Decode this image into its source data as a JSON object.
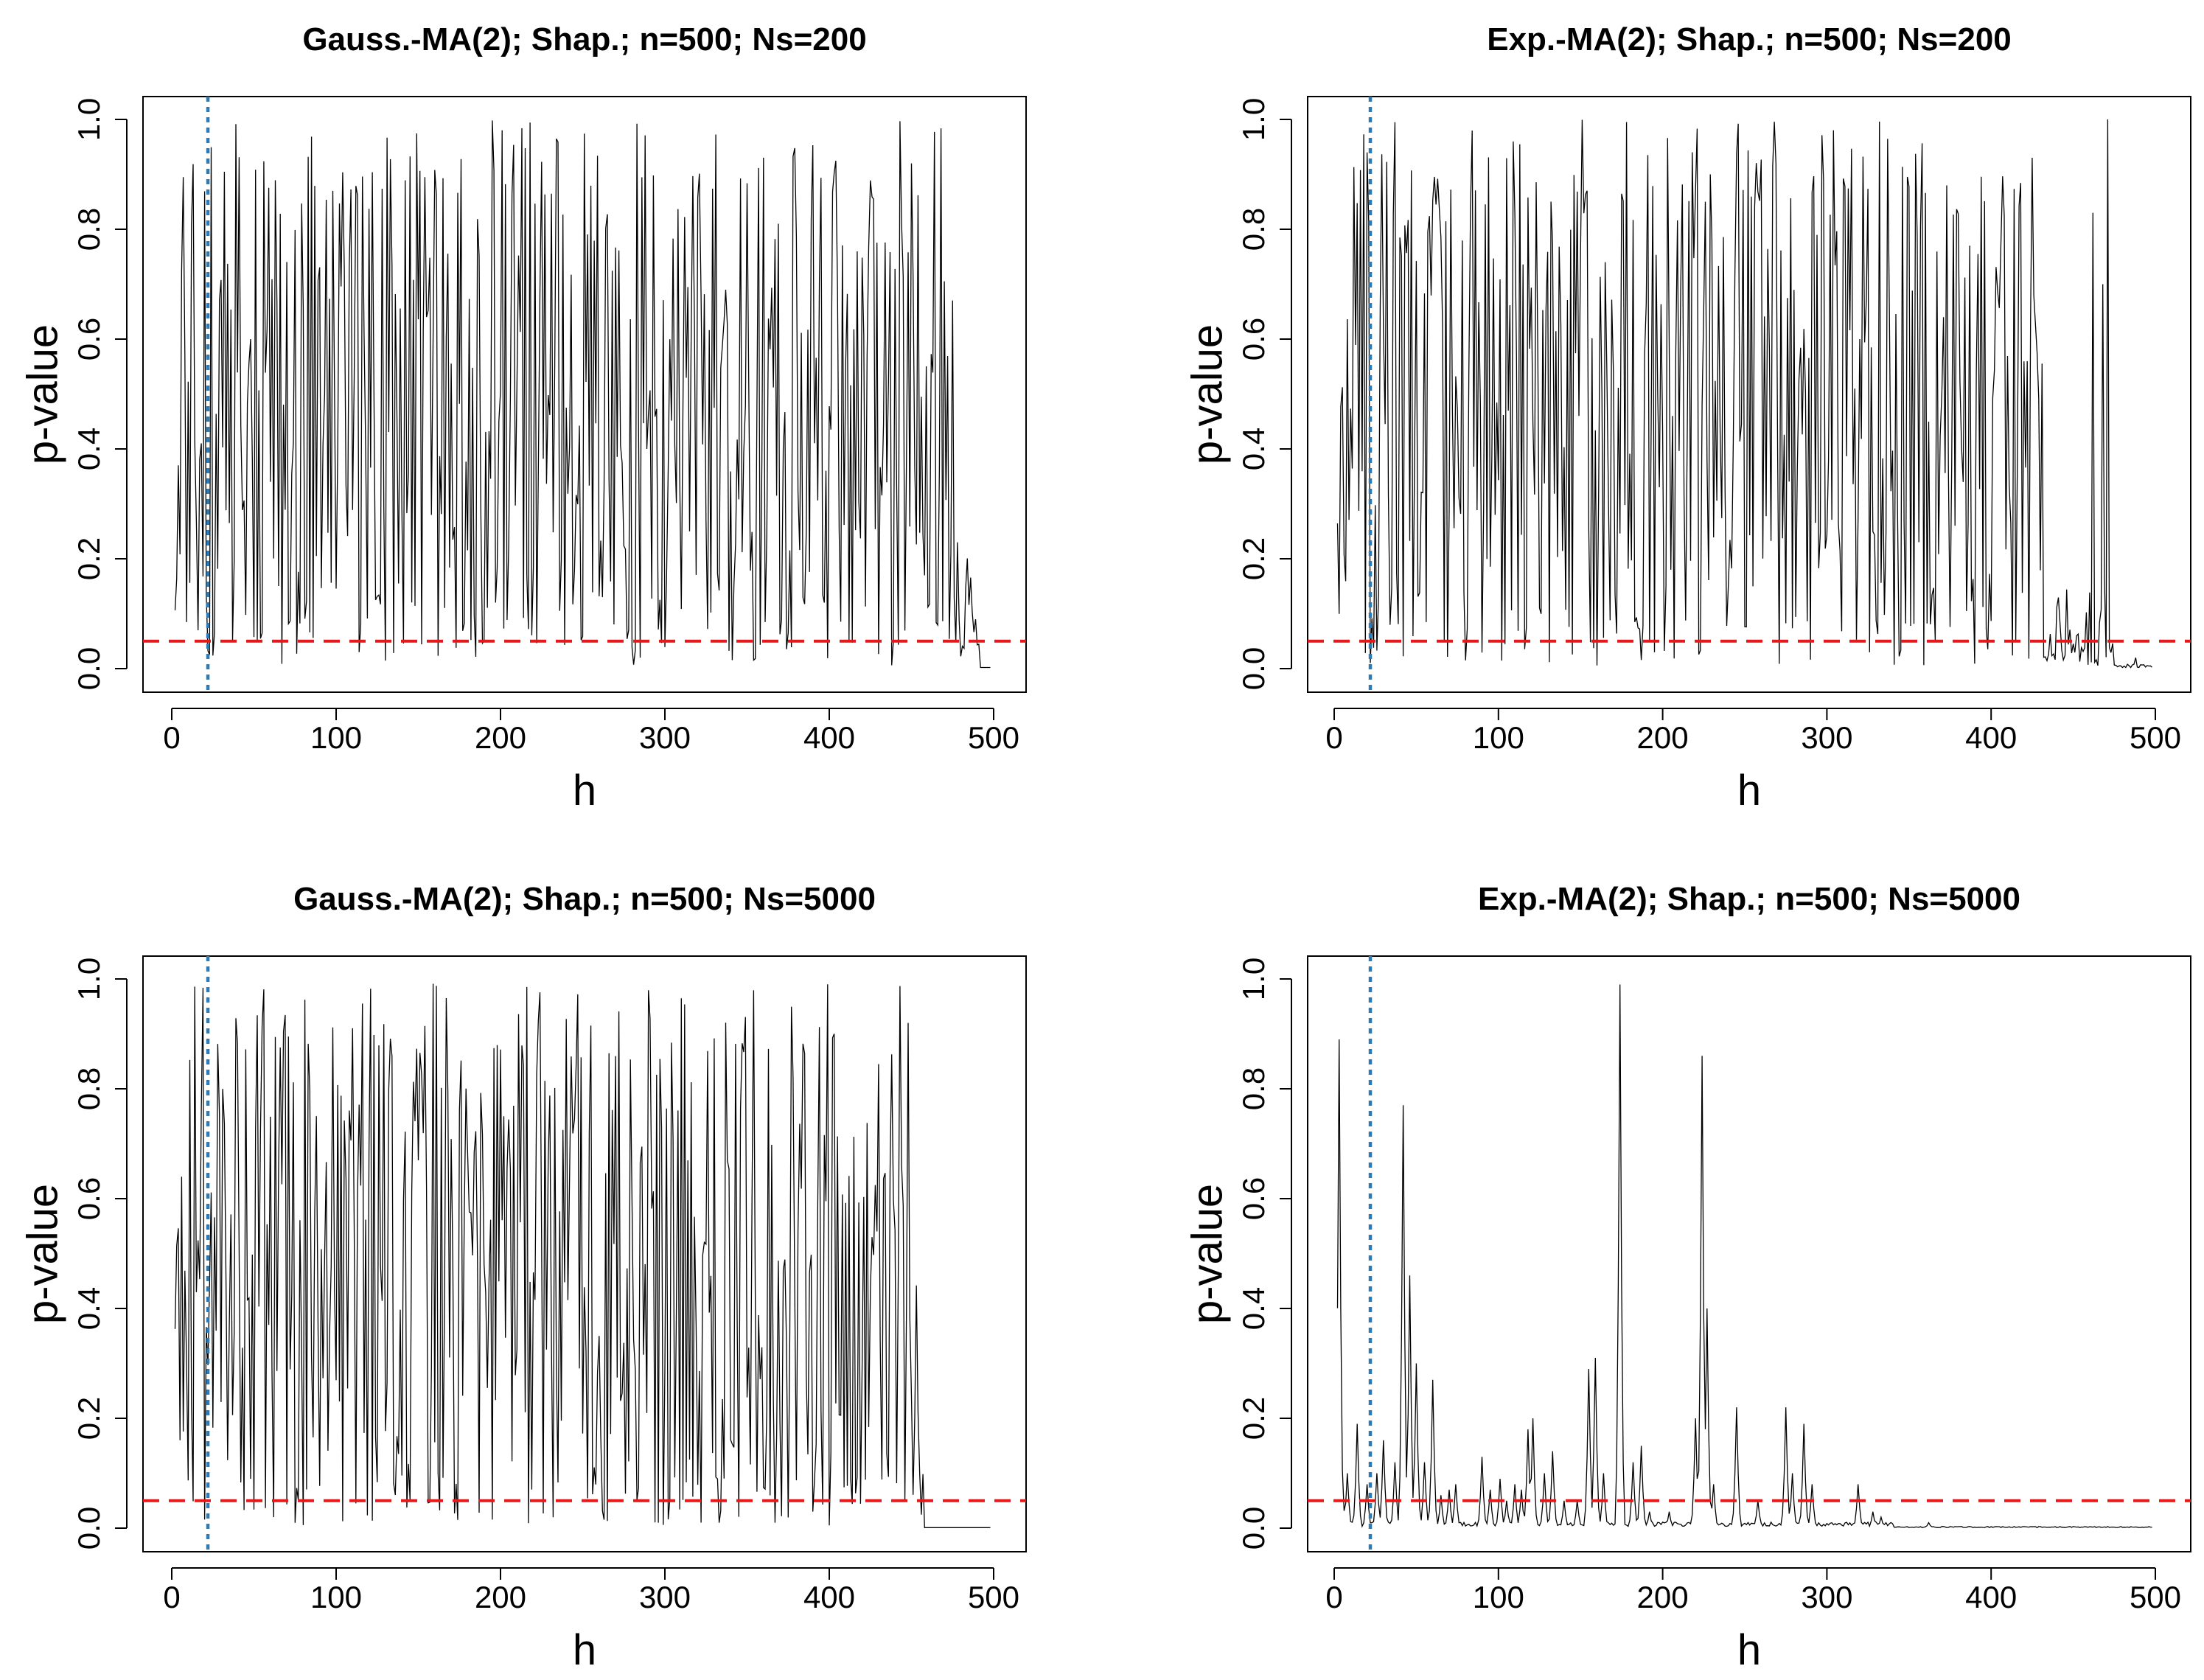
{
  "chart_data": [
    {
      "type": "line",
      "title": "Gauss.-MA(2);  Shap.;  n=500;  Ns=200",
      "xlabel": "h",
      "ylabel": "p-value",
      "xlim": [
        0,
        500
      ],
      "ylim": [
        0,
        1
      ],
      "xticks": [
        "0",
        "100",
        "200",
        "300",
        "400",
        "500"
      ],
      "yticks": [
        "0.0",
        "0.2",
        "0.4",
        "0.6",
        "0.8",
        "1.0"
      ],
      "reference_lines": {
        "hline": 0.05,
        "vline": 22
      },
      "series": [
        {
          "name": "p-value",
          "pattern": "gauss200",
          "x_range": [
            2,
            498
          ]
        }
      ]
    },
    {
      "type": "line",
      "title": "Exp.-MA(2);  Shap.;  n=500;  Ns=200",
      "xlabel": "h",
      "ylabel": "p-value",
      "xlim": [
        0,
        500
      ],
      "ylim": [
        0,
        1
      ],
      "xticks": [
        "0",
        "100",
        "200",
        "300",
        "400",
        "500"
      ],
      "yticks": [
        "0.0",
        "0.2",
        "0.4",
        "0.6",
        "0.8",
        "1.0"
      ],
      "reference_lines": {
        "hline": 0.05,
        "vline": 22
      },
      "series": [
        {
          "name": "p-value",
          "pattern": "exp200",
          "x_range": [
            2,
            498
          ]
        }
      ]
    },
    {
      "type": "line",
      "title": "Gauss.-MA(2);  Shap.;  n=500;  Ns=5000",
      "xlabel": "h",
      "ylabel": "p-value",
      "xlim": [
        0,
        500
      ],
      "ylim": [
        0,
        1
      ],
      "xticks": [
        "0",
        "100",
        "200",
        "300",
        "400",
        "500"
      ],
      "yticks": [
        "0.0",
        "0.2",
        "0.4",
        "0.6",
        "0.8",
        "1.0"
      ],
      "reference_lines": {
        "hline": 0.05,
        "vline": 22
      },
      "series": [
        {
          "name": "p-value",
          "pattern": "gauss5000",
          "x_range": [
            2,
            498
          ]
        }
      ]
    },
    {
      "type": "line",
      "title": "Exp.-MA(2);  Shap.;  n=500;  Ns=5000",
      "xlabel": "h",
      "ylabel": "p-value",
      "xlim": [
        0,
        500
      ],
      "ylim": [
        0,
        1
      ],
      "xticks": [
        "0",
        "100",
        "200",
        "300",
        "400",
        "500"
      ],
      "yticks": [
        "0.0",
        "0.2",
        "0.4",
        "0.6",
        "0.8",
        "1.0"
      ],
      "reference_lines": {
        "hline": 0.05,
        "vline": 22
      },
      "series": [
        {
          "name": "p-value",
          "pattern": "exp5000",
          "x_range": [
            2,
            498
          ],
          "peaks": [
            [
              3,
              0.89
            ],
            [
              5,
              0.07
            ],
            [
              8,
              0.1
            ],
            [
              14,
              0.19
            ],
            [
              20,
              0.08
            ],
            [
              26,
              0.1
            ],
            [
              30,
              0.16
            ],
            [
              37,
              0.12
            ],
            [
              42,
              0.77
            ],
            [
              46,
              0.46
            ],
            [
              50,
              0.3
            ],
            [
              55,
              0.12
            ],
            [
              60,
              0.27
            ],
            [
              65,
              0.06
            ],
            [
              70,
              0.07
            ],
            [
              74,
              0.08
            ],
            [
              90,
              0.13
            ],
            [
              95,
              0.07
            ],
            [
              101,
              0.09
            ],
            [
              105,
              0.05
            ],
            [
              110,
              0.08
            ],
            [
              114,
              0.07
            ],
            [
              118,
              0.18
            ],
            [
              121,
              0.2
            ],
            [
              128,
              0.1
            ],
            [
              133,
              0.14
            ],
            [
              140,
              0.05
            ],
            [
              148,
              0.05
            ],
            [
              155,
              0.29
            ],
            [
              159,
              0.31
            ],
            [
              164,
              0.1
            ],
            [
              174,
              0.99
            ],
            [
              182,
              0.12
            ],
            [
              187,
              0.15
            ],
            [
              192,
              0.03
            ],
            [
              204,
              0.03
            ],
            [
              220,
              0.2
            ],
            [
              224,
              0.86
            ],
            [
              227,
              0.4
            ],
            [
              231,
              0.08
            ],
            [
              245,
              0.22
            ],
            [
              258,
              0.05
            ],
            [
              275,
              0.22
            ],
            [
              279,
              0.1
            ],
            [
              286,
              0.19
            ],
            [
              291,
              0.08
            ],
            [
              319,
              0.08
            ],
            [
              328,
              0.03
            ],
            [
              333,
              0.02
            ],
            [
              336,
              0.01
            ],
            [
              362,
              0.01
            ]
          ]
        }
      ]
    }
  ]
}
